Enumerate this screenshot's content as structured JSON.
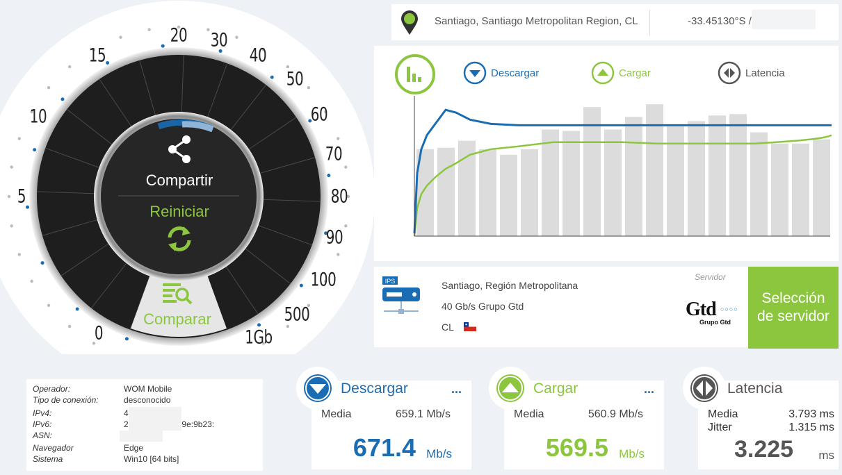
{
  "gauge": {
    "labels": [
      "0",
      "5",
      "10",
      "15",
      "20",
      "30",
      "40",
      "50",
      "60",
      "70",
      "80",
      "90",
      "100",
      "500",
      "1Gb"
    ],
    "share_label": "Compartir",
    "restart_label": "Reiniciar",
    "compare_label": "Comparar"
  },
  "location": {
    "city": "Santiago, Santiago Metropolitan Region, CL",
    "coords": "-33.45130°S / -"
  },
  "legend": {
    "download": "Descargar",
    "upload": "Cargar",
    "latency": "Latencia"
  },
  "server": {
    "ips_badge": "IPS",
    "name": "Santiago, Región Metropolitana",
    "provider": "40 Gb/s Grupo Gtd",
    "country": "CL",
    "caption": "Servidor",
    "logo_text": "Gtd",
    "logo_sub": "Grupo Gtd",
    "select_button": "Selección de servidor"
  },
  "info": {
    "rows": [
      {
        "key": "Operador:",
        "value": "WOM Mobile"
      },
      {
        "key": "Tipo de conexión:",
        "value": "desconocido"
      },
      {
        "key": "IPv4:",
        "value": "4"
      },
      {
        "key": "IPv6:",
        "value": "2:9312:68d0:149e:9b23:"
      },
      {
        "key": "ASN:",
        "value": ""
      },
      {
        "key": "Navegador",
        "value": "Edge"
      },
      {
        "key": "Sistema",
        "value": "Win10 [64 bits]"
      }
    ]
  },
  "results": {
    "download": {
      "title": "Descargar",
      "dots": "...",
      "avg_label": "Media",
      "avg_value": "659.1 Mb/s",
      "value": "671.4",
      "unit": "Mb/s"
    },
    "upload": {
      "title": "Cargar",
      "dots": "...",
      "avg_label": "Media",
      "avg_value": "560.9 Mb/s",
      "value": "569.5",
      "unit": "Mb/s"
    },
    "latency": {
      "title": "Latencia",
      "avg_label": "Media",
      "avg_value": "3.793 ms",
      "jitter_label": "Jitter",
      "jitter_value": "1.315 ms",
      "value": "3.225",
      "unit": "ms"
    }
  },
  "colors": {
    "download": "#1a6db3",
    "upload": "#8cc63f",
    "latency": "#555555",
    "bars": "#dcdcdc"
  },
  "chart_data": {
    "type": "line",
    "bars": [
      0.62,
      0.63,
      0.68,
      0.62,
      0.58,
      0.62,
      0.76,
      0.75,
      0.92,
      0.76,
      0.85,
      0.94,
      0.79,
      0.82,
      0.86,
      0.87,
      0.74,
      0.66,
      0.66,
      0.69
    ],
    "series": [
      {
        "name": "Descargar",
        "values": [
          0.02,
          0.45,
          0.62,
          0.72,
          0.8,
          0.9,
          0.88,
          0.83,
          0.8,
          0.79,
          0.79,
          0.79,
          0.79,
          0.79,
          0.79,
          0.79,
          0.79,
          0.79,
          0.79,
          0.79,
          0.79,
          0.79,
          0.79,
          0.79
        ]
      },
      {
        "name": "Cargar",
        "values": [
          0.0,
          0.2,
          0.3,
          0.36,
          0.42,
          0.48,
          0.52,
          0.58,
          0.62,
          0.64,
          0.67,
          0.67,
          0.67,
          0.66,
          0.66,
          0.66,
          0.66,
          0.66,
          0.67,
          0.68,
          0.69,
          0.7,
          0.71,
          0.72
        ]
      }
    ]
  }
}
